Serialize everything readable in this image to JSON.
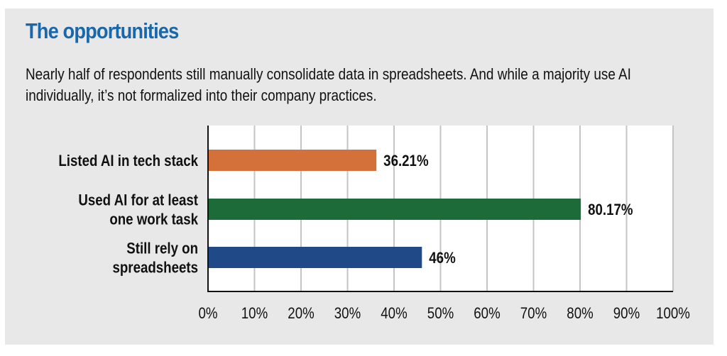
{
  "title": "The opportunities",
  "subtitle": "Nearly half of respondents still manually consolidate data in spreadsheets. And while a majority use AI individually, it’s not formalized into their company practices.",
  "chart_data": {
    "type": "bar",
    "orientation": "horizontal",
    "categories": [
      [
        "Listed AI in tech stack"
      ],
      [
        "Used AI for at least",
        "one work task"
      ],
      [
        "Still rely on",
        "spreadsheets"
      ]
    ],
    "values": [
      36.21,
      80.17,
      46
    ],
    "data_labels": [
      "36.21%",
      "80.17%",
      "46%"
    ],
    "colors": [
      "#d4703a",
      "#1e6b3a",
      "#1f4a87"
    ],
    "xlim": [
      0,
      100
    ],
    "xticks": [
      "0%",
      "10%",
      "20%",
      "30%",
      "40%",
      "50%",
      "60%",
      "70%",
      "80%",
      "90%",
      "100%"
    ],
    "grid": true,
    "xlabel": "",
    "ylabel": ""
  }
}
